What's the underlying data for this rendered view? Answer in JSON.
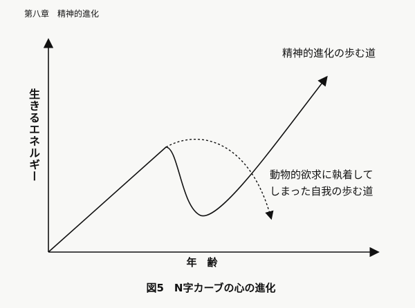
{
  "header": {
    "title": "第八章　精神的進化"
  },
  "axes": {
    "y_label": "生きるエネルギー",
    "x_label": "年　齢"
  },
  "paths": {
    "spiritual": {
      "label": "精神的進化の歩む道"
    },
    "animal": {
      "label_lines": [
        "動物的欲求に執着して",
        "しまった自我の歩む道"
      ]
    }
  },
  "caption": "図5　N字カーブの心の進化"
}
